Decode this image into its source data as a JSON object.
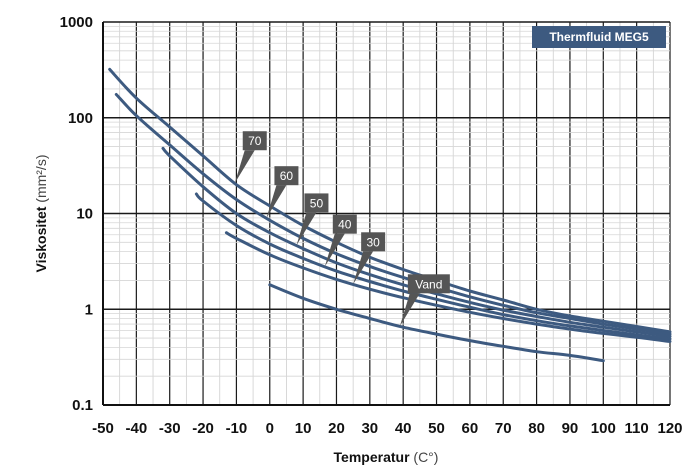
{
  "chart_data": {
    "type": "line",
    "title": "Thermfluid MEG5",
    "xlabel": {
      "bold": "Temperatur",
      "unit": "(C°)"
    },
    "ylabel": {
      "bold": "Viskositet",
      "unit": "(mm²/s)"
    },
    "xlim": [
      -50,
      120
    ],
    "ylim": [
      0.1,
      1000
    ],
    "y_scale": "log",
    "x_ticks": [
      -50,
      -40,
      -30,
      -20,
      -10,
      0,
      10,
      20,
      30,
      40,
      50,
      60,
      70,
      80,
      90,
      100,
      110,
      120
    ],
    "x_tick_labels": [
      "-50",
      "-40",
      "-30",
      "-20",
      "-10",
      "0",
      "10",
      "20",
      "30",
      "40",
      "50",
      "60",
      "70",
      "80",
      "90",
      "100",
      "110",
      "120"
    ],
    "y_ticks": [
      0.1,
      1,
      10,
      100,
      1000
    ],
    "y_tick_labels": [
      "0.1",
      "1",
      "10",
      "100",
      "1000"
    ],
    "grid": true,
    "line_color": "#3d5a80",
    "title_bg_color": "#3d5a80",
    "label_bg_color": "#555555",
    "series": [
      {
        "name": "70",
        "x": [
          -48,
          -40,
          -30,
          -20,
          -10,
          0,
          10,
          20,
          30,
          40,
          50,
          60,
          70,
          80,
          90,
          100,
          110,
          120
        ],
        "y": [
          320,
          160,
          80,
          40,
          20,
          12,
          7.5,
          5,
          3.5,
          2.6,
          2.0,
          1.55,
          1.25,
          1.0,
          0.85,
          0.75,
          0.66,
          0.58
        ]
      },
      {
        "name": "60",
        "x": [
          -46,
          -40,
          -30,
          -20,
          -10,
          0,
          10,
          20,
          30,
          40,
          50,
          60,
          70,
          80,
          90,
          100,
          110,
          120
        ],
        "y": [
          175,
          105,
          52,
          26,
          14,
          8.5,
          5.5,
          3.8,
          2.8,
          2.15,
          1.7,
          1.35,
          1.1,
          0.92,
          0.8,
          0.7,
          0.62,
          0.55
        ]
      },
      {
        "name": "50",
        "x": [
          -32,
          -30,
          -20,
          -10,
          0,
          10,
          20,
          30,
          40,
          50,
          60,
          70,
          80,
          90,
          100,
          110,
          120
        ],
        "y": [
          48,
          40,
          19,
          10,
          6.3,
          4.3,
          3.05,
          2.3,
          1.8,
          1.45,
          1.18,
          0.98,
          0.84,
          0.73,
          0.65,
          0.58,
          0.52
        ]
      },
      {
        "name": "40",
        "x": [
          -22,
          -20,
          -10,
          0,
          10,
          20,
          30,
          40,
          50,
          60,
          70,
          80,
          90,
          100,
          110,
          120
        ],
        "y": [
          16,
          13.5,
          7.5,
          4.8,
          3.4,
          2.5,
          1.95,
          1.55,
          1.27,
          1.05,
          0.88,
          0.76,
          0.67,
          0.6,
          0.54,
          0.49
        ]
      },
      {
        "name": "30",
        "x": [
          -13,
          -10,
          0,
          10,
          20,
          30,
          40,
          50,
          60,
          70,
          80,
          90,
          100,
          110,
          120
        ],
        "y": [
          6.3,
          5.5,
          3.7,
          2.7,
          2.05,
          1.62,
          1.32,
          1.1,
          0.93,
          0.8,
          0.7,
          0.62,
          0.56,
          0.51,
          0.46
        ]
      },
      {
        "name": "Vand",
        "x": [
          0,
          10,
          20,
          30,
          40,
          50,
          60,
          70,
          80,
          90,
          100
        ],
        "y": [
          1.8,
          1.3,
          1.0,
          0.8,
          0.65,
          0.55,
          0.47,
          0.41,
          0.36,
          0.33,
          0.29
        ]
      }
    ]
  }
}
